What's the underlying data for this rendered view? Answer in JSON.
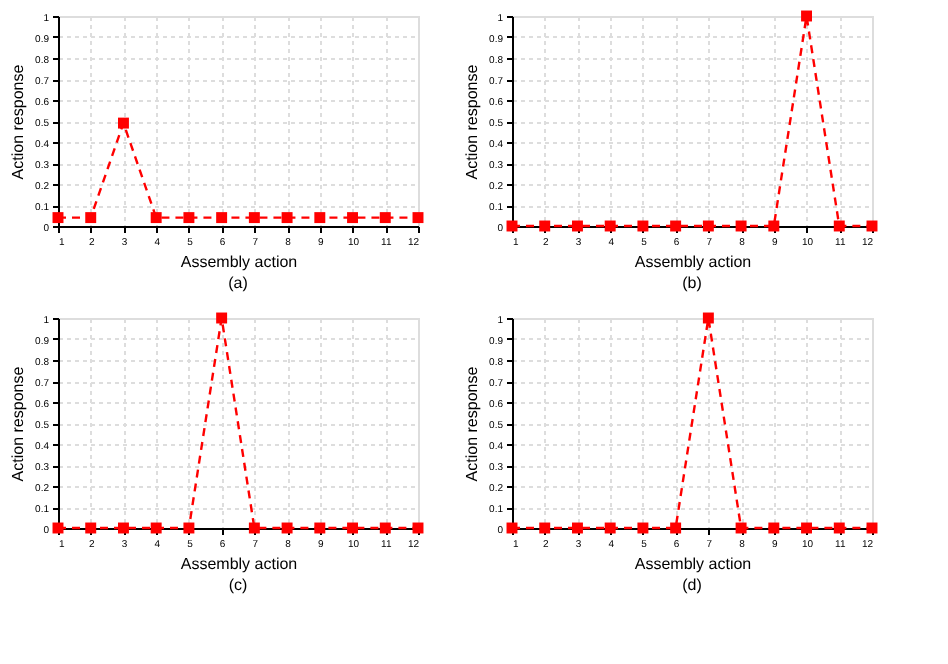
{
  "chart_data": [
    {
      "type": "line",
      "x": [
        1,
        2,
        3,
        4,
        5,
        6,
        7,
        8,
        9,
        10,
        11,
        12
      ],
      "series": [
        {
          "color": "#ff0000",
          "values": [
            0.04,
            0.04,
            0.49,
            0.04,
            0.04,
            0.04,
            0.04,
            0.04,
            0.04,
            0.04,
            0.04,
            0.04
          ]
        }
      ],
      "xlabel": "Assembly action",
      "ylabel": "Action response",
      "annotations": [
        "(a)"
      ],
      "xlim": [
        1,
        12
      ],
      "xticks": [
        1,
        2,
        3,
        4,
        5,
        6,
        7,
        8,
        9,
        10,
        11,
        12
      ],
      "ylim": [
        0,
        1
      ],
      "yticks": [
        0,
        0.1,
        0.2,
        0.3,
        0.4,
        0.5,
        0.6,
        0.7,
        0.8,
        0.9,
        1
      ],
      "grid": true,
      "marker": "square",
      "line_style": "dashed"
    },
    {
      "type": "line",
      "x": [
        1,
        2,
        3,
        4,
        5,
        6,
        7,
        8,
        9,
        10,
        11,
        12
      ],
      "series": [
        {
          "color": "#ff0000",
          "values": [
            0,
            0,
            0,
            0,
            0,
            0,
            0,
            0,
            0,
            1,
            0,
            0
          ]
        }
      ],
      "xlabel": "Assembly action",
      "ylabel": "Action response",
      "annotations": [
        "(b)"
      ],
      "xlim": [
        1,
        12
      ],
      "xticks": [
        1,
        2,
        3,
        4,
        5,
        6,
        7,
        8,
        9,
        10,
        11,
        12
      ],
      "ylim": [
        0,
        1
      ],
      "yticks": [
        0,
        0.1,
        0.2,
        0.3,
        0.4,
        0.5,
        0.6,
        0.7,
        0.8,
        0.9,
        1
      ],
      "grid": true,
      "marker": "square",
      "line_style": "dashed"
    },
    {
      "type": "line",
      "x": [
        1,
        2,
        3,
        4,
        5,
        6,
        7,
        8,
        9,
        10,
        11,
        12
      ],
      "series": [
        {
          "color": "#ff0000",
          "values": [
            0,
            0,
            0,
            0,
            0,
            1,
            0,
            0,
            0,
            0,
            0,
            0
          ]
        }
      ],
      "xlabel": "Assembly action",
      "ylabel": "Action response",
      "annotations": [
        "(c)"
      ],
      "xlim": [
        1,
        12
      ],
      "xticks": [
        1,
        2,
        3,
        4,
        5,
        6,
        7,
        8,
        9,
        10,
        11,
        12
      ],
      "ylim": [
        0,
        1
      ],
      "yticks": [
        0,
        0.1,
        0.2,
        0.3,
        0.4,
        0.5,
        0.6,
        0.7,
        0.8,
        0.9,
        1
      ],
      "grid": true,
      "marker": "square",
      "line_style": "dashed"
    },
    {
      "type": "line",
      "x": [
        1,
        2,
        3,
        4,
        5,
        6,
        7,
        8,
        9,
        10,
        11,
        12
      ],
      "series": [
        {
          "color": "#ff0000",
          "values": [
            0,
            0,
            0,
            0,
            0,
            0,
            1,
            0,
            0,
            0,
            0,
            0
          ]
        }
      ],
      "xlabel": "Assembly action",
      "ylabel": "Action response",
      "annotations": [
        "(d)"
      ],
      "xlim": [
        1,
        12
      ],
      "xticks": [
        1,
        2,
        3,
        4,
        5,
        6,
        7,
        8,
        9,
        10,
        11,
        12
      ],
      "ylim": [
        0,
        1
      ],
      "yticks": [
        0,
        0.1,
        0.2,
        0.3,
        0.4,
        0.5,
        0.6,
        0.7,
        0.8,
        0.9,
        1
      ],
      "grid": true,
      "marker": "square",
      "line_style": "dashed"
    }
  ]
}
